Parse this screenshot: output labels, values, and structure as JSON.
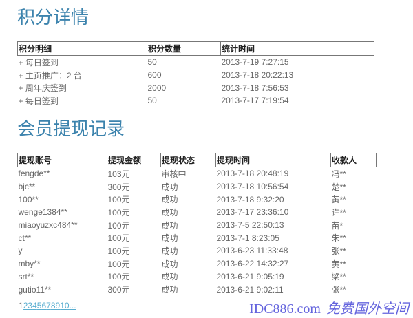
{
  "points": {
    "title": "积分详情",
    "headers": [
      "积分明细",
      "积分数量",
      "统计时间"
    ],
    "rows": [
      [
        "+ 每日签到",
        "50",
        "2013-7-19 7:27:15"
      ],
      [
        "+ 主页推广：2 台",
        "600",
        "2013-7-18 20:22:13"
      ],
      [
        "+ 周年庆签到",
        "2000",
        "2013-7-18 7:56:53"
      ],
      [
        "+ 每日签到",
        "50",
        "2013-7-17 7:19:54"
      ]
    ]
  },
  "withdrawals": {
    "title": "会员提现记录",
    "headers": [
      "提现账号",
      "提现金额",
      "提现状态",
      "提现时间",
      "收款人"
    ],
    "rows": [
      [
        "fengde**",
        "103元",
        "审核中",
        "2013-7-18 20:48:19",
        "冯**"
      ],
      [
        "bjc**",
        "300元",
        "成功",
        "2013-7-18 10:56:54",
        "楚**"
      ],
      [
        "100**",
        "100元",
        "成功",
        "2013-7-18 9:32:20",
        "黄**"
      ],
      [
        "wenge1384**",
        "100元",
        "成功",
        "2013-7-17 23:36:10",
        "许**"
      ],
      [
        "miaoyuzxc484**",
        "100元",
        "成功",
        "2013-7-5 22:50:13",
        "苗*"
      ],
      [
        "ct**",
        "100元",
        "成功",
        "2013-7-1 8:23:05",
        "朱**"
      ],
      [
        "y",
        "100元",
        "成功",
        "2013-6-23 11:33:48",
        "张**"
      ],
      [
        "mby**",
        "100元",
        "成功",
        "2013-6-22 14:32:27",
        "黄**"
      ],
      [
        "srt**",
        "100元",
        "成功",
        "2013-6-21 9:05:19",
        "梁**"
      ],
      [
        "gutio11**",
        "300元",
        "成功",
        "2013-6-21 9:02:11",
        "张**"
      ]
    ]
  },
  "pager": {
    "current": "1",
    "pages": [
      "2",
      "3",
      "4",
      "5",
      "6",
      "7",
      "8",
      "9",
      "10"
    ],
    "more": "..."
  },
  "watermark": {
    "line1": "IDC886.com",
    "line2": "免费国外空间"
  }
}
